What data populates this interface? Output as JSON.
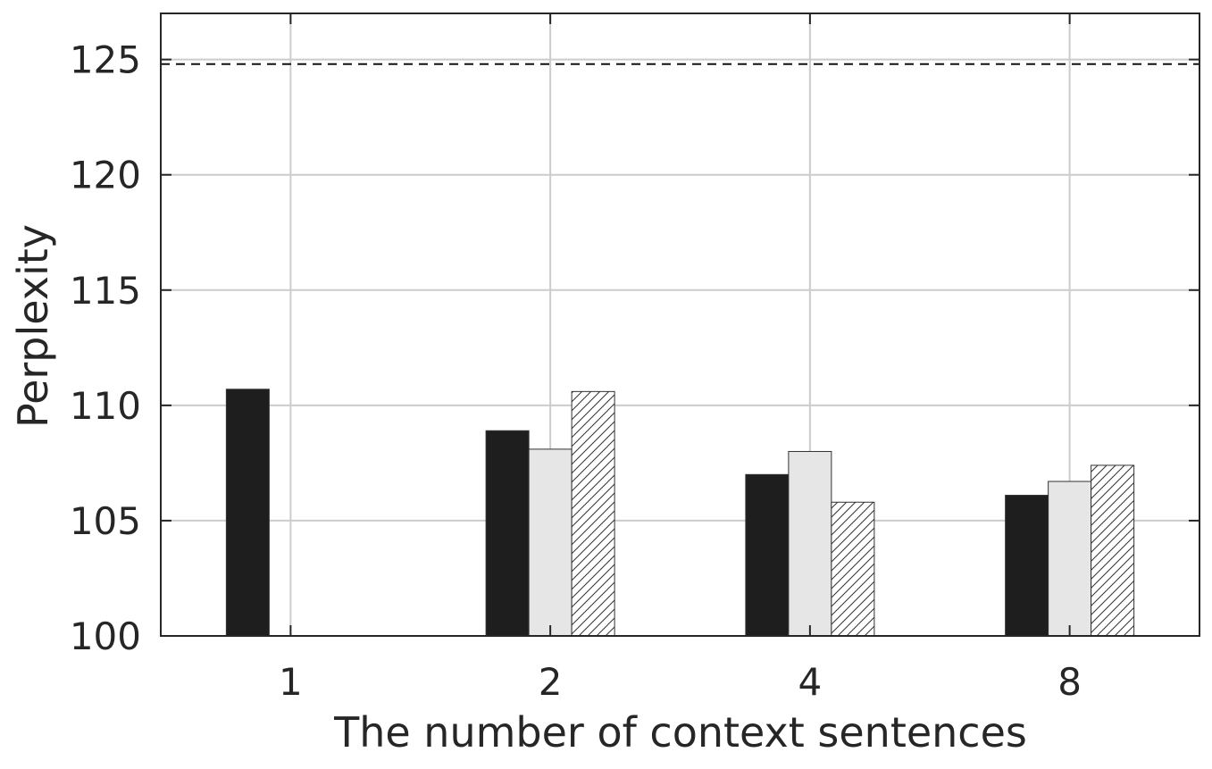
{
  "chart_data": {
    "type": "bar",
    "title": "",
    "xlabel": "The number of context sentences",
    "ylabel": "Perplexity",
    "categories": [
      "1",
      "2",
      "4",
      "8"
    ],
    "ylim": [
      100,
      127
    ],
    "yticks": [
      100,
      105,
      110,
      115,
      120,
      125
    ],
    "grid": true,
    "legend": "none",
    "reference_line": {
      "value": 124.8,
      "style": "dashed"
    },
    "series": [
      {
        "fill": "#1e1e1e",
        "pattern": "solid",
        "values": [
          110.7,
          108.9,
          107.0,
          106.1
        ]
      },
      {
        "fill": "#e6e6e6",
        "pattern": "solid",
        "values": [
          null,
          108.1,
          108.0,
          106.7
        ]
      },
      {
        "fill": "#ffffff",
        "pattern": "hatch",
        "values": [
          null,
          110.6,
          105.8,
          107.4
        ]
      }
    ]
  }
}
